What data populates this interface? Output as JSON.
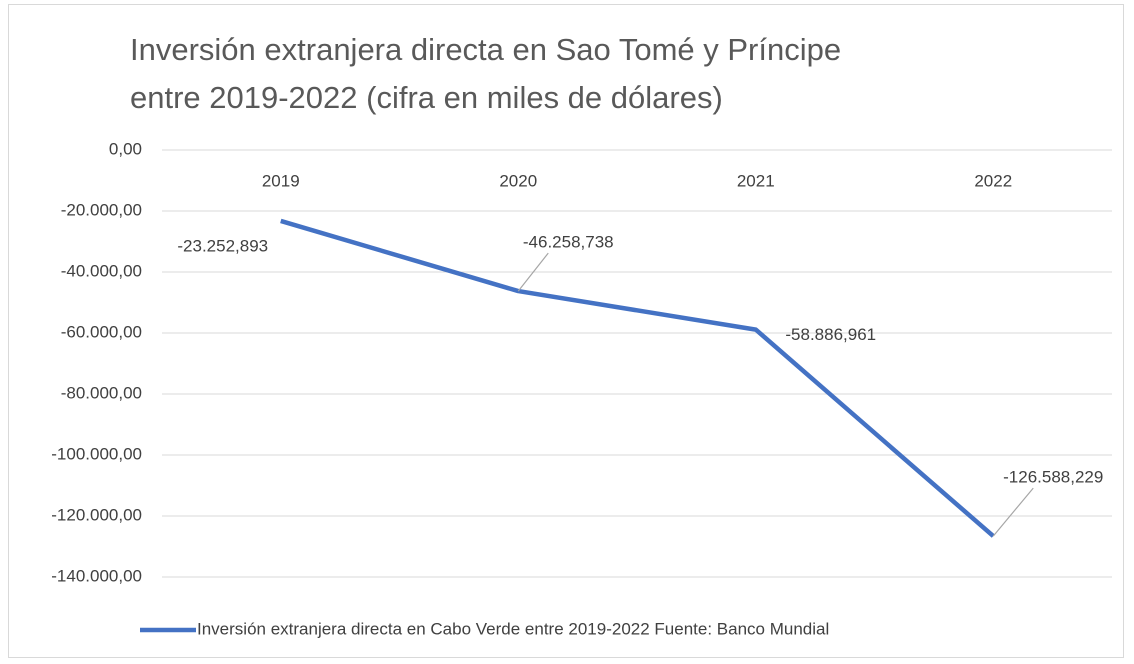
{
  "chart_data": {
    "type": "line",
    "title": "Inversión extranjera directa en Sao Tomé y Príncipe entre 2019-2022 (cifra en miles de dólares)",
    "categories": [
      "2019",
      "2020",
      "2021",
      "2022"
    ],
    "series": [
      {
        "name": "Inversión extranjera directa en Cabo Verde  entre 2019-2022 Fuente: Banco Mundial",
        "color": "#4472c4",
        "values": [
          -23252.893,
          -46258.738,
          -58886.961,
          -126588.229
        ],
        "value_labels": [
          "-23.252,893",
          "-46.258,738",
          "-58.886,961",
          "-126.588,229"
        ]
      }
    ],
    "ylim": [
      -140000,
      0
    ],
    "yticks": [
      {
        "value": 0,
        "label": "0,00"
      },
      {
        "value": -20000,
        "label": "-20.000,00"
      },
      {
        "value": -40000,
        "label": "-40.000,00"
      },
      {
        "value": -60000,
        "label": "-60.000,00"
      },
      {
        "value": -80000,
        "label": "-80.000,00"
      },
      {
        "value": -100000,
        "label": "-100.000,00"
      },
      {
        "value": -120000,
        "label": "-120.000,00"
      },
      {
        "value": -140000,
        "label": "-140.000,00"
      }
    ],
    "grid": true,
    "legend": "bottom"
  }
}
